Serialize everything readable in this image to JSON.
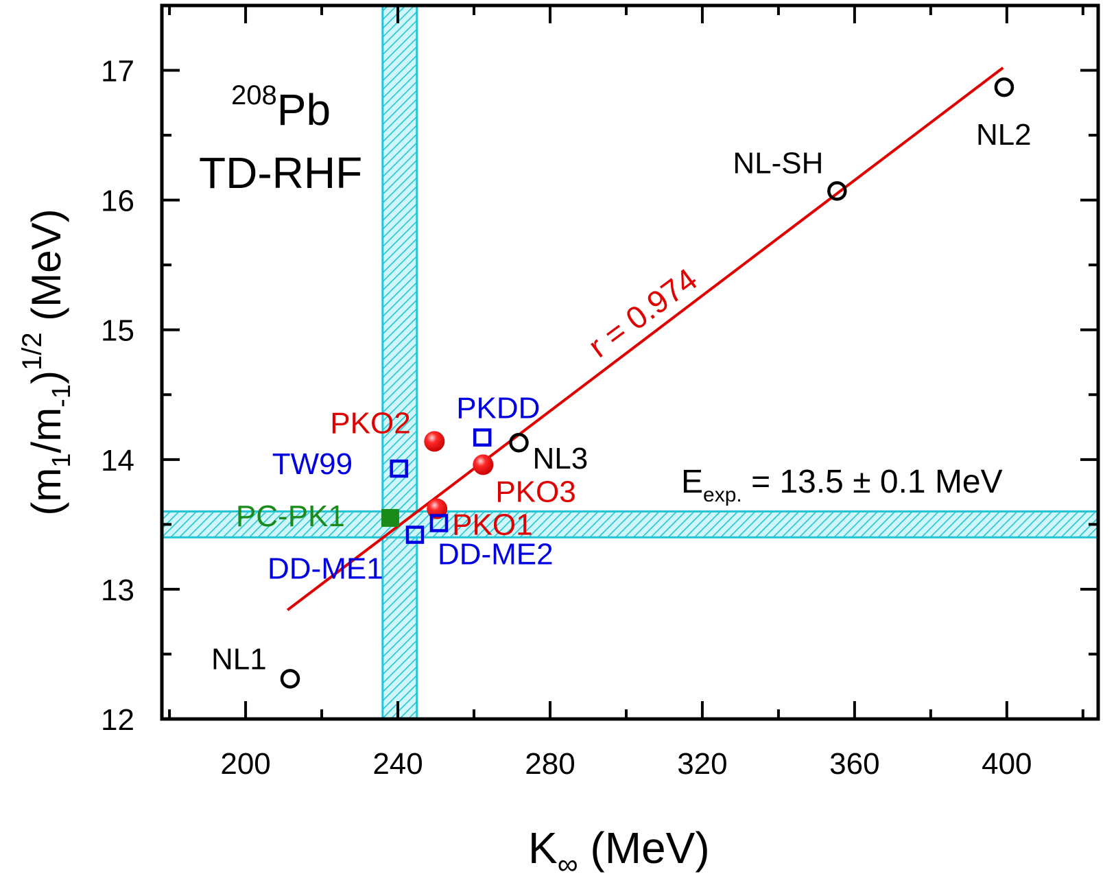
{
  "chart_data": {
    "type": "scatter",
    "xlabel_main": "K",
    "xlabel_sub": "∞",
    "xlabel_unit": " (MeV)",
    "ylabel": {
      "open": "(m",
      "s1": "1",
      "mid": "/m",
      "s2": "-1",
      "close": ")",
      "sup": "1/2",
      "unit": " (MeV)"
    },
    "xlim": [
      178,
      424
    ],
    "ylim": [
      12,
      17.5
    ],
    "x_ticks": [
      200,
      240,
      280,
      320,
      360,
      400
    ],
    "x_tick_labels": [
      "200",
      "240",
      "280",
      "320",
      "360",
      "400"
    ],
    "y_ticks": [
      12,
      13,
      14,
      15,
      16,
      17
    ],
    "y_tick_labels": [
      "12",
      "13",
      "14",
      "15",
      "16",
      "17"
    ],
    "inset_title": {
      "mass_number": "208",
      "nucleus": "Pb",
      "method": "TD-RHF"
    },
    "bands": {
      "vertical": {
        "x_min": 236,
        "x_max": 245
      },
      "horizontal": {
        "y_min": 13.4,
        "y_max": 13.6
      }
    },
    "experiment": {
      "label_main": "E",
      "label_sub": "exp.",
      "label_value": " = 13.5 ± 0.1 MeV"
    },
    "fit": {
      "x": [
        211,
        399
      ],
      "y": [
        12.84,
        17.02
      ],
      "label": "r = 0.974",
      "color": "#e00000"
    },
    "series": [
      {
        "name": "NL",
        "marker": "open-circle",
        "color": "#000000",
        "points": [
          {
            "label": "NL1",
            "x": 211.7,
            "y": 12.31
          },
          {
            "label": "NL3",
            "x": 271.8,
            "y": 14.13
          },
          {
            "label": "NL-SH",
            "x": 355.4,
            "y": 16.07
          },
          {
            "label": "NL2",
            "x": 399.3,
            "y": 16.87
          }
        ]
      },
      {
        "name": "PKO",
        "marker": "filled-circle",
        "color": "#e00000",
        "points": [
          {
            "label": "PKO2",
            "x": 249.6,
            "y": 14.14
          },
          {
            "label": "PKO3",
            "x": 262.4,
            "y": 13.96
          },
          {
            "label": "PKO1",
            "x": 250.3,
            "y": 13.62
          }
        ]
      },
      {
        "name": "DD",
        "marker": "open-square",
        "color": "#0000e0",
        "points": [
          {
            "label": "PKDD",
            "x": 262.2,
            "y": 14.17
          },
          {
            "label": "TW99",
            "x": 240.3,
            "y": 13.93
          },
          {
            "label": "DD-ME2",
            "x": 250.8,
            "y": 13.51
          },
          {
            "label": "DD-ME1",
            "x": 244.5,
            "y": 13.42
          }
        ]
      },
      {
        "name": "PC",
        "marker": "filled-square",
        "color": "#1a8a1a",
        "points": [
          {
            "label": "PC-PK1",
            "x": 238.0,
            "y": 13.55
          }
        ]
      }
    ]
  }
}
